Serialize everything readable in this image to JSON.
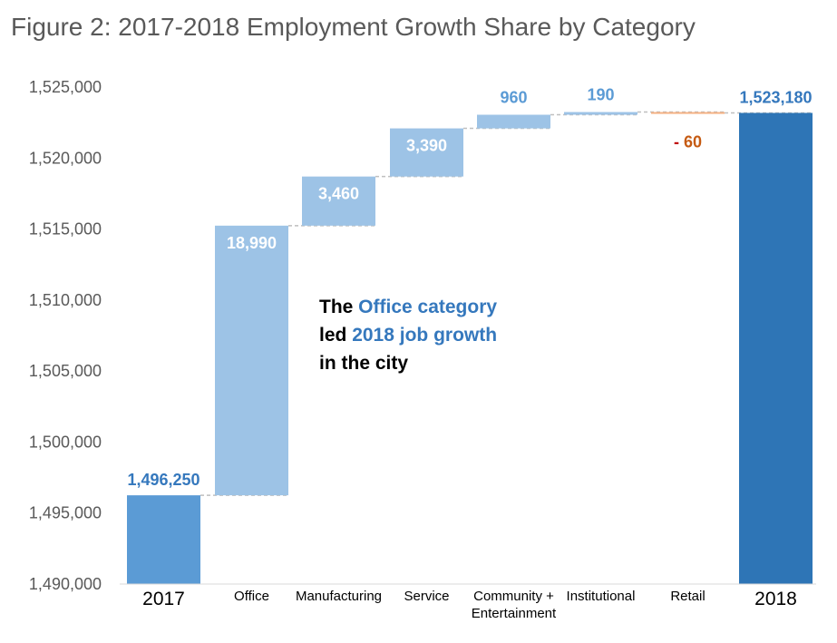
{
  "chart_data": {
    "type": "waterfall",
    "title": "Figure 2: 2017-2018 Employment Growth Share by Category",
    "ylim": [
      1490000,
      1525000
    ],
    "y_ticks": [
      "1,490,000",
      "1,495,000",
      "1,500,000",
      "1,505,000",
      "1,510,000",
      "1,515,000",
      "1,520,000",
      "1,525,000"
    ],
    "y_tick_values": [
      1490000,
      1495000,
      1500000,
      1505000,
      1510000,
      1515000,
      1520000,
      1525000
    ],
    "bars": [
      {
        "category": "2017",
        "kind": "total",
        "value": 1496250,
        "label": "1,496,250",
        "color": "#5b9bd5",
        "label_color": "#3578bd"
      },
      {
        "category": "Office",
        "kind": "increase",
        "value": 18990,
        "label": "18,990",
        "color": "#9dc3e6",
        "label_color": "#ffffff"
      },
      {
        "category": "Manufacturing",
        "kind": "increase",
        "value": 3460,
        "label": "3,460",
        "color": "#9dc3e6",
        "label_color": "#ffffff"
      },
      {
        "category": "Service",
        "kind": "increase",
        "value": 3390,
        "label": "3,390",
        "color": "#9dc3e6",
        "label_color": "#ffffff"
      },
      {
        "category": "Community + Entertainment",
        "kind": "increase",
        "value": 960,
        "label": "960",
        "color": "#9dc3e6",
        "label_color": "#5b9bd5"
      },
      {
        "category": "Institutional",
        "kind": "increase",
        "value": 190,
        "label": "190",
        "color": "#9dc3e6",
        "label_color": "#5b9bd5"
      },
      {
        "category": "Retail",
        "kind": "decrease",
        "value": -60,
        "label": "60",
        "label_prefix": "-",
        "color": "#f4b183",
        "label_color": "#c55a11",
        "prefix_color": "#c00000"
      },
      {
        "category": "2018",
        "kind": "total",
        "value": 1523180,
        "label": "1,523,180",
        "color": "#2e75b6",
        "label_color": "#3578bd"
      }
    ],
    "x_labels": [
      {
        "lines": [
          "2017"
        ],
        "emphasis": true
      },
      {
        "lines": [
          "Office"
        ],
        "emphasis": false
      },
      {
        "lines": [
          "Manufacturing"
        ],
        "emphasis": false
      },
      {
        "lines": [
          "Service"
        ],
        "emphasis": false
      },
      {
        "lines": [
          "Community +",
          "Entertainment"
        ],
        "emphasis": false
      },
      {
        "lines": [
          "Institutional"
        ],
        "emphasis": false
      },
      {
        "lines": [
          "Retail"
        ],
        "emphasis": false
      },
      {
        "lines": [
          "2018"
        ],
        "emphasis": true
      }
    ],
    "connector_color": "#bfbfbf",
    "annotation": {
      "line1_a": "The ",
      "line1_b": "Office category",
      "line2_a": "led ",
      "line2_b": "2018 job growth",
      "line3": "in the city"
    }
  }
}
